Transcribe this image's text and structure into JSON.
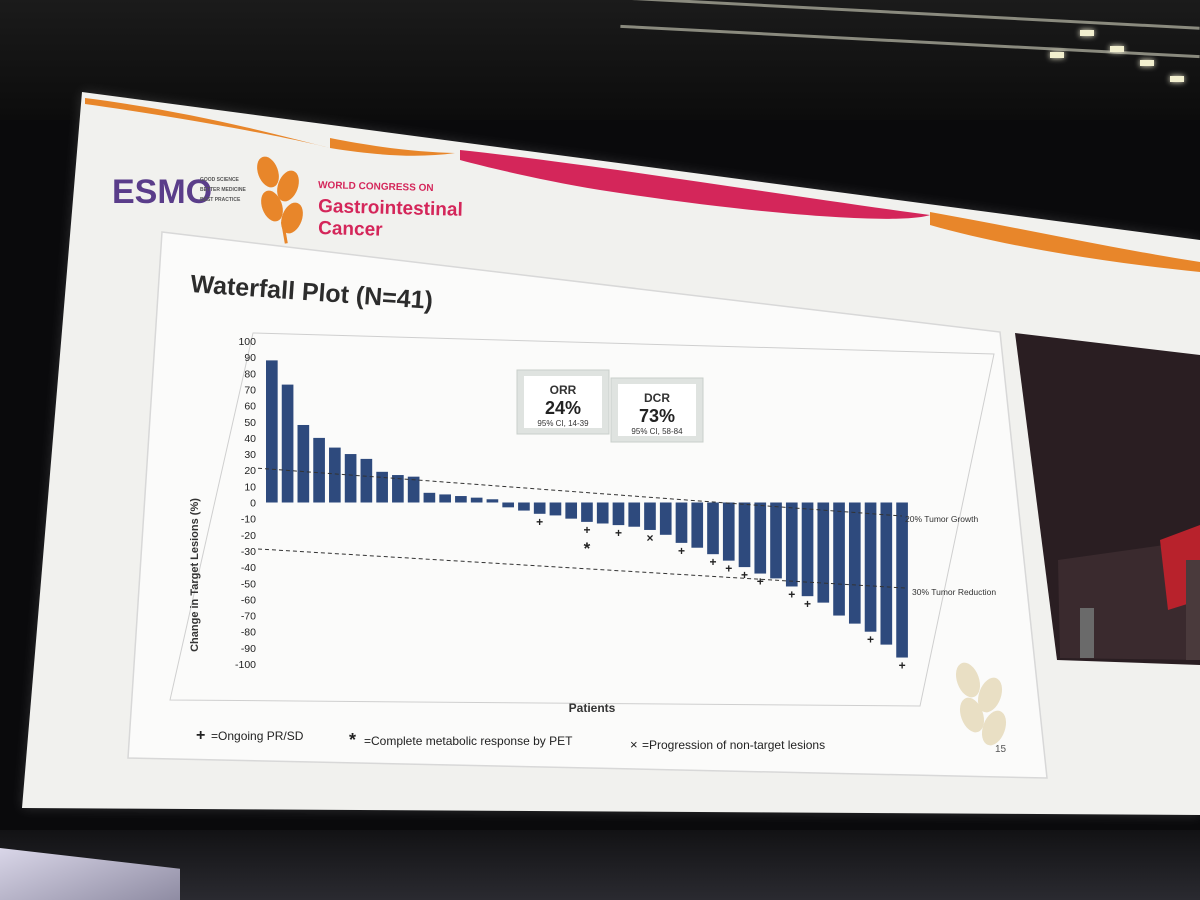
{
  "congress": {
    "org_logo": "ESMO",
    "org_tagline": [
      "GOOD SCIENCE",
      "BETTER MEDICINE",
      "BEST PRACTICE"
    ],
    "line1": "WORLD CONGRESS ON",
    "line2": "Gastrointestinal",
    "line3": "Cancer",
    "logo_color": "#e8862a",
    "accent_color": "#d4265a"
  },
  "slide": {
    "title": "Waterfall Plot (N=41)",
    "page_number": "15",
    "stats": [
      {
        "label": "ORR",
        "value": "24%",
        "ci": "95% CI, 14-39"
      },
      {
        "label": "DCR",
        "value": "73%",
        "ci": "95% CI, 58-84"
      }
    ],
    "legend": [
      {
        "symbol": "+",
        "text": "=Ongoing PR/SD"
      },
      {
        "symbol": "*",
        "text": "=Complete metabolic response by PET"
      },
      {
        "symbol": "×",
        "text": "=Progression of non-target lesions"
      }
    ]
  },
  "chart_data": {
    "type": "bar",
    "xlabel": "Patients",
    "ylabel": "Change in Target Lesions (%)",
    "ylim": [
      -100,
      100
    ],
    "yticks": [
      100,
      90,
      80,
      70,
      60,
      50,
      40,
      30,
      20,
      10,
      0,
      -10,
      -20,
      -30,
      -40,
      -50,
      -60,
      -70,
      -80,
      -90,
      -100
    ],
    "bar_color": "#2e4a7d",
    "values": [
      88,
      73,
      48,
      40,
      34,
      30,
      27,
      19,
      17,
      16,
      6,
      5,
      4,
      3,
      2,
      -3,
      -5,
      -7,
      -8,
      -10,
      -12,
      -13,
      -14,
      -15,
      -17,
      -20,
      -25,
      -28,
      -32,
      -36,
      -40,
      -44,
      -47,
      -52,
      -58,
      -62,
      -70,
      -75,
      -80,
      -88,
      -96
    ],
    "markers": [
      {
        "bar": 17,
        "symbol": "+"
      },
      {
        "bar": 20,
        "symbol": "+"
      },
      {
        "bar": 20,
        "symbol": "*"
      },
      {
        "bar": 22,
        "symbol": "+"
      },
      {
        "bar": 24,
        "symbol": "×"
      },
      {
        "bar": 26,
        "symbol": "+"
      },
      {
        "bar": 28,
        "symbol": "+"
      },
      {
        "bar": 29,
        "symbol": "+"
      },
      {
        "bar": 30,
        "symbol": "+"
      },
      {
        "bar": 31,
        "symbol": "+"
      },
      {
        "bar": 33,
        "symbol": "+"
      },
      {
        "bar": 34,
        "symbol": "+"
      },
      {
        "bar": 38,
        "symbol": "+"
      },
      {
        "bar": 40,
        "symbol": "+"
      }
    ],
    "reference_lines": [
      {
        "value": 20,
        "label": "20% Tumor Growth"
      },
      {
        "value": -30,
        "label": "30% Tumor Reduction"
      }
    ]
  }
}
